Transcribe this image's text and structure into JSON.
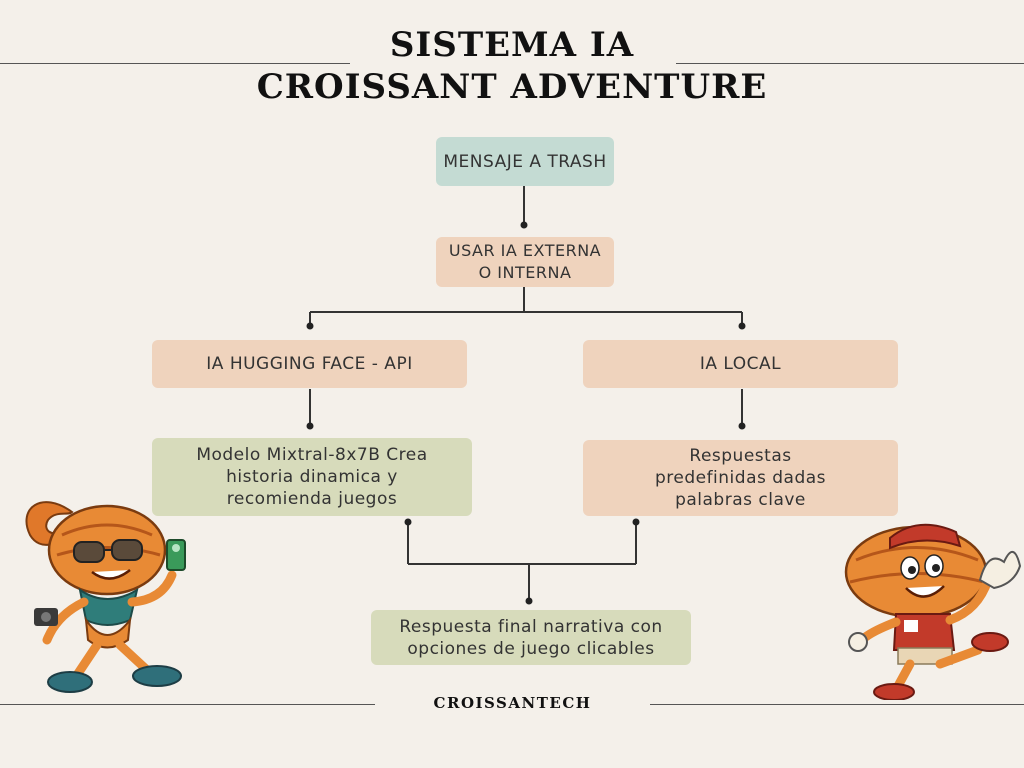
{
  "title": {
    "line1": "SISTEMA IA",
    "line2": "CROISSANT ADVENTURE"
  },
  "nodes": {
    "mensaje": "MENSAJE A TRASH",
    "usar": "USAR IA EXTERNA O INTERNA",
    "hugging": "IA HUGGING FACE - API",
    "local": "IA LOCAL",
    "modelo": "Modelo Mixtral-8x7B Crea historia dinamica y recomienda juegos",
    "respuestas": "Respuestas predefinidas dadas palabras clave",
    "final": "Respuesta final narrativa con opciones de juego clicables"
  },
  "footer": "CROISSANTECH",
  "colors": {
    "teal": "#c4dbd3",
    "peach": "#efd3bd",
    "sage": "#d7dbbb",
    "croissant": "#e0782a"
  },
  "mascots": {
    "left": "croissant-explorer-mascot",
    "right": "croissant-waving-mascot"
  }
}
